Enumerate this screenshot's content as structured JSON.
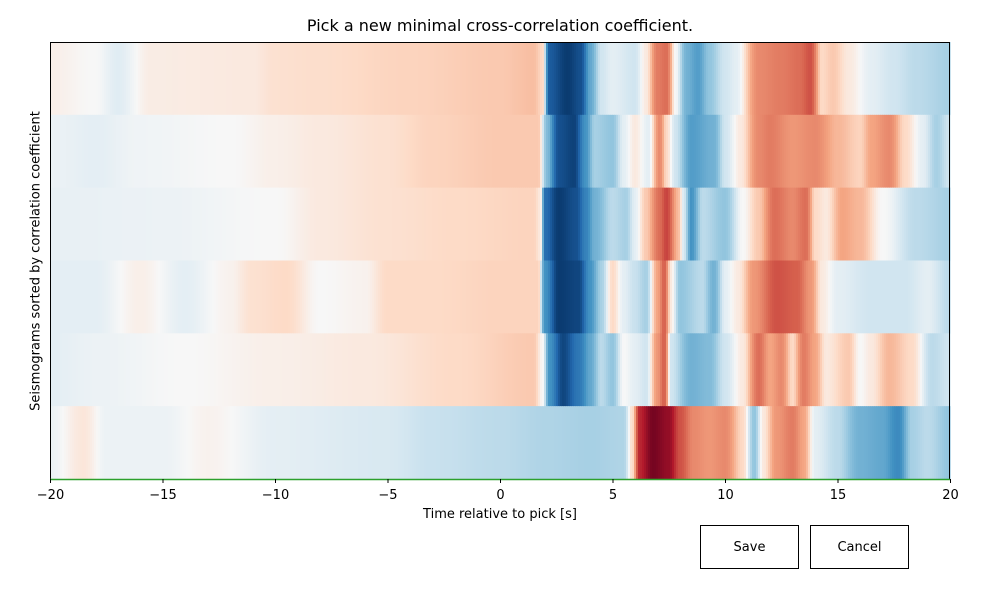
{
  "figure": {
    "save_label": "Save",
    "cancel_label": "Cancel"
  },
  "chart_data": {
    "type": "heatmap",
    "title": "Pick a new minimal cross-correlation coefficient.",
    "xlabel": "Time relative to pick [s]",
    "ylabel": "Seismograms sorted by correlation coefficient",
    "xlim": [
      -20,
      20
    ],
    "xticks": [
      -20,
      -15,
      -10,
      -5,
      0,
      5,
      10,
      15,
      20
    ],
    "xtick_labels": [
      "−20",
      "−15",
      "−10",
      "−5",
      "0",
      "5",
      "10",
      "15",
      "20"
    ],
    "y_tick_labels": "none",
    "colormap": "RdBu (red = positive, blue = negative)",
    "threshold_line_color": "#2ca02c",
    "value_range": [
      -1,
      1
    ],
    "rows": [
      {
        "knots": [
          [
            -20,
            0.03
          ],
          [
            -18,
            0.0
          ],
          [
            -17,
            -0.06
          ],
          [
            -15.5,
            0.04
          ],
          [
            -11,
            0.05
          ],
          [
            -10,
            0.08
          ],
          [
            -8,
            0.09
          ],
          [
            -4,
            0.12
          ],
          [
            0,
            0.15
          ],
          [
            1.5,
            0.18
          ],
          [
            1.9,
            0.1
          ],
          [
            2.2,
            -0.8
          ],
          [
            3,
            -0.95
          ],
          [
            3.6,
            -0.85
          ],
          [
            4,
            -0.4
          ],
          [
            4.5,
            -0.1
          ],
          [
            5,
            -0.05
          ],
          [
            6,
            -0.1
          ],
          [
            6.5,
            0.05
          ],
          [
            7,
            0.4
          ],
          [
            7.4,
            0.45
          ],
          [
            7.8,
            0.0
          ],
          [
            8.3,
            -0.35
          ],
          [
            8.8,
            -0.45
          ],
          [
            9.3,
            -0.25
          ],
          [
            10,
            -0.1
          ],
          [
            10.5,
            -0.05
          ],
          [
            11.5,
            0.35
          ],
          [
            12.5,
            0.4
          ],
          [
            13.3,
            0.45
          ],
          [
            13.8,
            0.55
          ],
          [
            14.3,
            0.1
          ],
          [
            14.8,
            0.15
          ],
          [
            15.5,
            0.05
          ],
          [
            16.5,
            -0.05
          ],
          [
            17.5,
            -0.1
          ],
          [
            18.5,
            -0.15
          ],
          [
            20,
            -0.2
          ]
        ]
      },
      {
        "knots": [
          [
            -20,
            -0.03
          ],
          [
            -18,
            -0.05
          ],
          [
            -16,
            -0.02
          ],
          [
            -12,
            0.0
          ],
          [
            -10,
            0.03
          ],
          [
            -8,
            0.05
          ],
          [
            -5,
            0.08
          ],
          [
            -3,
            0.12
          ],
          [
            0,
            0.15
          ],
          [
            1.7,
            0.15
          ],
          [
            2.1,
            -0.3
          ],
          [
            2.6,
            -0.85
          ],
          [
            3.3,
            -0.92
          ],
          [
            3.8,
            -0.5
          ],
          [
            4.2,
            -0.2
          ],
          [
            5,
            -0.25
          ],
          [
            5.5,
            -0.05
          ],
          [
            6,
            0.05
          ],
          [
            6.6,
            -0.05
          ],
          [
            7.1,
            0.35
          ],
          [
            7.4,
            0.1
          ],
          [
            7.8,
            -0.1
          ],
          [
            8.5,
            -0.45
          ],
          [
            9.5,
            -0.35
          ],
          [
            10,
            -0.1
          ],
          [
            10.7,
            0.05
          ],
          [
            11.5,
            0.35
          ],
          [
            12,
            0.4
          ],
          [
            13,
            0.3
          ],
          [
            14,
            0.35
          ],
          [
            15,
            0.2
          ],
          [
            16,
            0.12
          ],
          [
            16.5,
            0.25
          ],
          [
            17.3,
            0.35
          ],
          [
            18,
            0.1
          ],
          [
            18.8,
            -0.05
          ],
          [
            19.4,
            -0.2
          ],
          [
            20,
            -0.1
          ]
        ]
      },
      {
        "knots": [
          [
            -20,
            -0.04
          ],
          [
            -15,
            -0.03
          ],
          [
            -10,
            0.0
          ],
          [
            -8,
            0.05
          ],
          [
            -5,
            0.08
          ],
          [
            -2,
            0.1
          ],
          [
            1.5,
            0.12
          ],
          [
            1.8,
            0.05
          ],
          [
            2,
            -0.7
          ],
          [
            2.6,
            -0.95
          ],
          [
            3.4,
            -0.85
          ],
          [
            3.8,
            -0.6
          ],
          [
            4.2,
            -0.35
          ],
          [
            5,
            -0.15
          ],
          [
            5.6,
            -0.2
          ],
          [
            6,
            -0.05
          ],
          [
            6.5,
            0.15
          ],
          [
            7.1,
            0.45
          ],
          [
            7.4,
            0.6
          ],
          [
            7.9,
            0.2
          ],
          [
            8.2,
            -0.1
          ],
          [
            8.5,
            -0.5
          ],
          [
            9,
            -0.15
          ],
          [
            10,
            -0.25
          ],
          [
            10.8,
            0.0
          ],
          [
            11.5,
            0.15
          ],
          [
            12.2,
            0.45
          ],
          [
            13,
            0.35
          ],
          [
            13.6,
            0.45
          ],
          [
            14,
            0.1
          ],
          [
            14.5,
            0.05
          ],
          [
            15.2,
            0.25
          ],
          [
            16,
            0.2
          ],
          [
            17,
            0.0
          ],
          [
            18.5,
            -0.15
          ],
          [
            20,
            -0.2
          ]
        ]
      },
      {
        "knots": [
          [
            -20,
            -0.05
          ],
          [
            -18,
            -0.05
          ],
          [
            -16,
            0.03
          ],
          [
            -14,
            -0.05
          ],
          [
            -12,
            0.02
          ],
          [
            -11,
            0.08
          ],
          [
            -9.5,
            0.1
          ],
          [
            -8,
            0.0
          ],
          [
            -6,
            0.02
          ],
          [
            -5,
            0.1
          ],
          [
            -3,
            0.1
          ],
          [
            0,
            0.12
          ],
          [
            1.7,
            0.12
          ],
          [
            2,
            -0.5
          ],
          [
            2.6,
            -0.95
          ],
          [
            3.5,
            -0.9
          ],
          [
            4,
            -0.5
          ],
          [
            4.5,
            -0.2
          ],
          [
            5,
            0.1
          ],
          [
            5.5,
            -0.05
          ],
          [
            6,
            -0.12
          ],
          [
            6.5,
            -0.2
          ],
          [
            7,
            0.25
          ],
          [
            7.3,
            0.5
          ],
          [
            7.6,
            0.05
          ],
          [
            8,
            -0.25
          ],
          [
            9,
            -0.15
          ],
          [
            9.5,
            -0.35
          ],
          [
            10,
            -0.05
          ],
          [
            10.6,
            0.05
          ],
          [
            11.3,
            0.3
          ],
          [
            12.3,
            0.55
          ],
          [
            13.2,
            0.5
          ],
          [
            13.8,
            0.3
          ],
          [
            14.3,
            0.05
          ],
          [
            15,
            -0.05
          ],
          [
            16.5,
            -0.1
          ],
          [
            18,
            -0.1
          ],
          [
            19,
            -0.05
          ],
          [
            20,
            -0.15
          ]
        ]
      },
      {
        "knots": [
          [
            -20,
            -0.05
          ],
          [
            -18,
            -0.03
          ],
          [
            -14,
            0.0
          ],
          [
            -10,
            0.03
          ],
          [
            -6,
            0.05
          ],
          [
            -2,
            0.1
          ],
          [
            1.5,
            0.15
          ],
          [
            1.9,
            0.0
          ],
          [
            2.2,
            -0.5
          ],
          [
            2.8,
            -0.9
          ],
          [
            3.5,
            -0.65
          ],
          [
            4,
            -0.4
          ],
          [
            4.5,
            -0.15
          ],
          [
            5,
            -0.25
          ],
          [
            5.5,
            0.0
          ],
          [
            6,
            -0.05
          ],
          [
            6.5,
            -0.1
          ],
          [
            7,
            0.3
          ],
          [
            7.3,
            0.5
          ],
          [
            7.6,
            -0.1
          ],
          [
            8.5,
            -0.35
          ],
          [
            9.3,
            -0.3
          ],
          [
            10,
            -0.1
          ],
          [
            10.8,
            0.05
          ],
          [
            11.5,
            0.45
          ],
          [
            12,
            0.25
          ],
          [
            12.5,
            0.35
          ],
          [
            13,
            0.1
          ],
          [
            13.5,
            0.4
          ],
          [
            14,
            0.25
          ],
          [
            14.5,
            0.05
          ],
          [
            15.5,
            0.15
          ],
          [
            16,
            0.0
          ],
          [
            16.5,
            0.05
          ],
          [
            17.3,
            0.2
          ],
          [
            18.3,
            0.1
          ],
          [
            19.2,
            -0.15
          ],
          [
            20,
            -0.1
          ]
        ]
      },
      {
        "knots": [
          [
            -20,
            -0.03
          ],
          [
            -18.5,
            0.06
          ],
          [
            -17.5,
            -0.03
          ],
          [
            -15,
            -0.03
          ],
          [
            -13,
            0.02
          ],
          [
            -10,
            -0.05
          ],
          [
            -5,
            -0.08
          ],
          [
            -3,
            -0.12
          ],
          [
            0,
            -0.15
          ],
          [
            2,
            -0.18
          ],
          [
            4,
            -0.2
          ],
          [
            5.5,
            -0.18
          ],
          [
            5.9,
            0.1
          ],
          [
            6.2,
            0.7
          ],
          [
            6.8,
            0.95
          ],
          [
            7.5,
            0.85
          ],
          [
            8,
            0.55
          ],
          [
            8.6,
            0.35
          ],
          [
            9.3,
            0.3
          ],
          [
            10,
            0.35
          ],
          [
            10.8,
            0.1
          ],
          [
            11.3,
            -0.25
          ],
          [
            11.7,
            0.05
          ],
          [
            12.3,
            0.3
          ],
          [
            13,
            0.4
          ],
          [
            13.5,
            0.25
          ],
          [
            14,
            -0.05
          ],
          [
            15,
            -0.15
          ],
          [
            16,
            -0.35
          ],
          [
            17,
            -0.4
          ],
          [
            17.7,
            -0.55
          ],
          [
            18.3,
            -0.2
          ],
          [
            19,
            -0.15
          ],
          [
            20,
            -0.25
          ]
        ]
      }
    ]
  }
}
